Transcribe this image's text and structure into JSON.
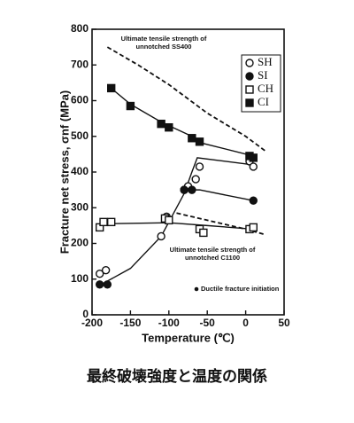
{
  "chart_data": {
    "type": "scatter",
    "xlabel": "Temperature (℃)",
    "ylabel": "Fracture net stress, σnf (MPa)",
    "caption": "最終破壊強度と温度の関係",
    "xlim": [
      -200,
      50
    ],
    "xticks": [
      -200,
      -150,
      -100,
      -50,
      0,
      50
    ],
    "ylim": [
      0,
      800
    ],
    "yticks": [
      0,
      100,
      200,
      300,
      400,
      500,
      600,
      700,
      800
    ],
    "legend": "upper right",
    "series": [
      {
        "name": "SH",
        "marker": "circle-open",
        "color": "#111111",
        "x": [
          -190,
          -182,
          -110,
          -103,
          -80,
          -75,
          -65,
          -60,
          5,
          10
        ],
        "values": [
          115,
          125,
          220,
          275,
          350,
          360,
          380,
          415,
          430,
          415
        ]
      },
      {
        "name": "SI",
        "marker": "circle-filled",
        "color": "#111111",
        "x": [
          -190,
          -180,
          -80,
          -70,
          10
        ],
        "values": [
          85,
          85,
          350,
          350,
          320
        ]
      },
      {
        "name": "CH",
        "marker": "square-open",
        "color": "#111111",
        "x": [
          -190,
          -185,
          -175,
          -105,
          -100,
          -60,
          -55,
          5,
          10
        ],
        "values": [
          245,
          260,
          260,
          270,
          265,
          240,
          230,
          240,
          245
        ]
      },
      {
        "name": "CI",
        "marker": "square-filled",
        "color": "#111111",
        "x": [
          -175,
          -150,
          -110,
          -100,
          -70,
          -60,
          5,
          10
        ],
        "values": [
          635,
          585,
          535,
          525,
          495,
          485,
          445,
          440
        ]
      }
    ],
    "fit_lines": [
      {
        "x": [
          -188,
          -150,
          -110,
          -95,
          -80,
          -70,
          -63,
          10
        ],
        "values": [
          85,
          130,
          220,
          280,
          340,
          400,
          440,
          420
        ]
      },
      {
        "x": [
          -80,
          -60,
          10
        ],
        "values": [
          350,
          350,
          320
        ]
      },
      {
        "x": [
          -190,
          -100,
          -50,
          10
        ],
        "values": [
          255,
          258,
          250,
          240
        ]
      },
      {
        "x": [
          -178,
          -150,
          -110,
          -70,
          -55,
          10
        ],
        "values": [
          640,
          590,
          540,
          500,
          480,
          445
        ]
      }
    ],
    "reference_lines": [
      {
        "label": "Ultimate tensile strength of unnotched SS400",
        "x": [
          -180,
          -140,
          -100,
          -50,
          0,
          25
        ],
        "values": [
          750,
          700,
          645,
          565,
          500,
          460
        ]
      },
      {
        "label": "Ultimate tensile strength of unnotched C1100",
        "x": [
          -90,
          -40,
          0,
          25
        ],
        "values": [
          285,
          260,
          240,
          225
        ]
      }
    ],
    "note": "Ductile fracture initiation"
  }
}
